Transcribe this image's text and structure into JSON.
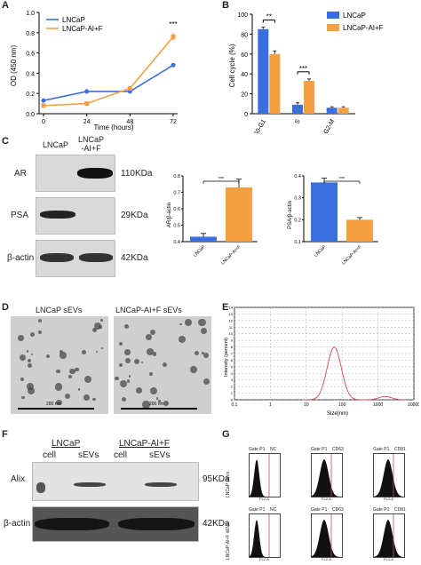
{
  "panels": {
    "A": "A",
    "B": "B",
    "C": "C",
    "D": "D",
    "E": "E",
    "F": "F",
    "G": "G"
  },
  "colors": {
    "lncap": "#3a6fe0",
    "lncap_aif": "#f5a040",
    "sig": "#000000",
    "curve": "#d04a4a"
  },
  "chart_A": {
    "type": "line",
    "x": [
      0,
      24,
      48,
      72
    ],
    "series": [
      {
        "name": "LNCaP",
        "values": [
          0.13,
          0.22,
          0.22,
          0.48
        ],
        "err": [
          0.01,
          0.02,
          0.01,
          0.02
        ]
      },
      {
        "name": "LNCaP-AI+F",
        "values": [
          0.08,
          0.1,
          0.25,
          0.76
        ],
        "err": [
          0.01,
          0.01,
          0.02,
          0.04
        ]
      }
    ],
    "xlabel": "Time (hours)",
    "ylabel": "OD (450 nm)",
    "xlim": [
      0,
      72
    ],
    "ylim": [
      0,
      1.0
    ],
    "xticks": [
      "0",
      "24",
      "48",
      "72"
    ],
    "yticks": [
      "0.0",
      "0.2",
      "0.4",
      "0.6",
      "0.8",
      "1.0"
    ],
    "annotation": "***"
  },
  "chart_B": {
    "type": "bar",
    "categories": [
      "G0-G1",
      "S",
      "G2-M"
    ],
    "series": [
      {
        "name": "LNCaP",
        "values": [
          85,
          9,
          6
        ],
        "err": [
          2,
          2,
          1
        ]
      },
      {
        "name": "LNCaP-AI+F",
        "values": [
          60,
          33,
          6
        ],
        "err": [
          3,
          2,
          1
        ]
      }
    ],
    "ylabel": "Cell cycle (%)",
    "ylim": [
      0,
      100
    ],
    "yticks": [
      "0",
      "20",
      "40",
      "60",
      "80",
      "100"
    ],
    "sig": [
      "**",
      "***"
    ]
  },
  "chart_C1": {
    "type": "bar",
    "categories": [
      "LNCaP",
      "LNCaP-AI+F"
    ],
    "values": [
      0.43,
      0.73
    ],
    "err": [
      0.02,
      0.05
    ],
    "ylabel": "AR/β-actin",
    "ylim": [
      0.4,
      0.8
    ],
    "yticks": [
      "0.4",
      "0.5",
      "0.6",
      "0.7",
      "0.8"
    ],
    "sig": "***"
  },
  "chart_C2": {
    "type": "bar",
    "categories": [
      "LNCaP",
      "LNCaP-AI+F"
    ],
    "values": [
      0.37,
      0.2
    ],
    "err": [
      0.02,
      0.01
    ],
    "ylabel": "PSA/β-actin",
    "ylim": [
      0.1,
      0.4
    ],
    "yticks": [
      "0.1",
      "0.2",
      "0.3",
      "0.4"
    ],
    "sig": "***"
  },
  "chart_E": {
    "type": "line",
    "xlabel": "Size(nm)",
    "ylabel": "Intensity (percent)",
    "xticks": [
      "0.1",
      "1",
      "10",
      "100",
      "1000",
      "10000"
    ],
    "yticks": [
      "0",
      "1",
      "2",
      "3",
      "4",
      "5",
      "6",
      "7",
      "8",
      "9",
      "10",
      "11",
      "12",
      "13",
      "14"
    ],
    "ylim": [
      0,
      14
    ]
  },
  "blot_C": {
    "header": [
      "LNCaP",
      "LNCaP\n-AI+F"
    ],
    "rows": [
      {
        "label": "AR",
        "size": "110KDa"
      },
      {
        "label": "PSA",
        "size": "29KDa"
      },
      {
        "label": "β-actin",
        "size": "42KDa"
      }
    ]
  },
  "em_D": {
    "titles": [
      "LNCaP sEVs",
      "LNCaP-AI+F sEVs"
    ],
    "scale": "200 nm"
  },
  "blot_F": {
    "groups": [
      "LNCaP",
      "LNCaP-AI+F"
    ],
    "lanes": [
      "cell",
      "sEVs",
      "cell",
      "sEVs"
    ],
    "rows": [
      {
        "label": "Alix",
        "size": "95KDa"
      },
      {
        "label": "β-actin",
        "size": "42KDa"
      }
    ]
  },
  "flow_G": {
    "gate": "Gate P1",
    "markers": [
      "NC",
      "CD63",
      "CD81"
    ],
    "rows": [
      "LNCaP sEVs",
      "LNCaP-AI+F sEVs"
    ],
    "axis": "FL2-A"
  }
}
